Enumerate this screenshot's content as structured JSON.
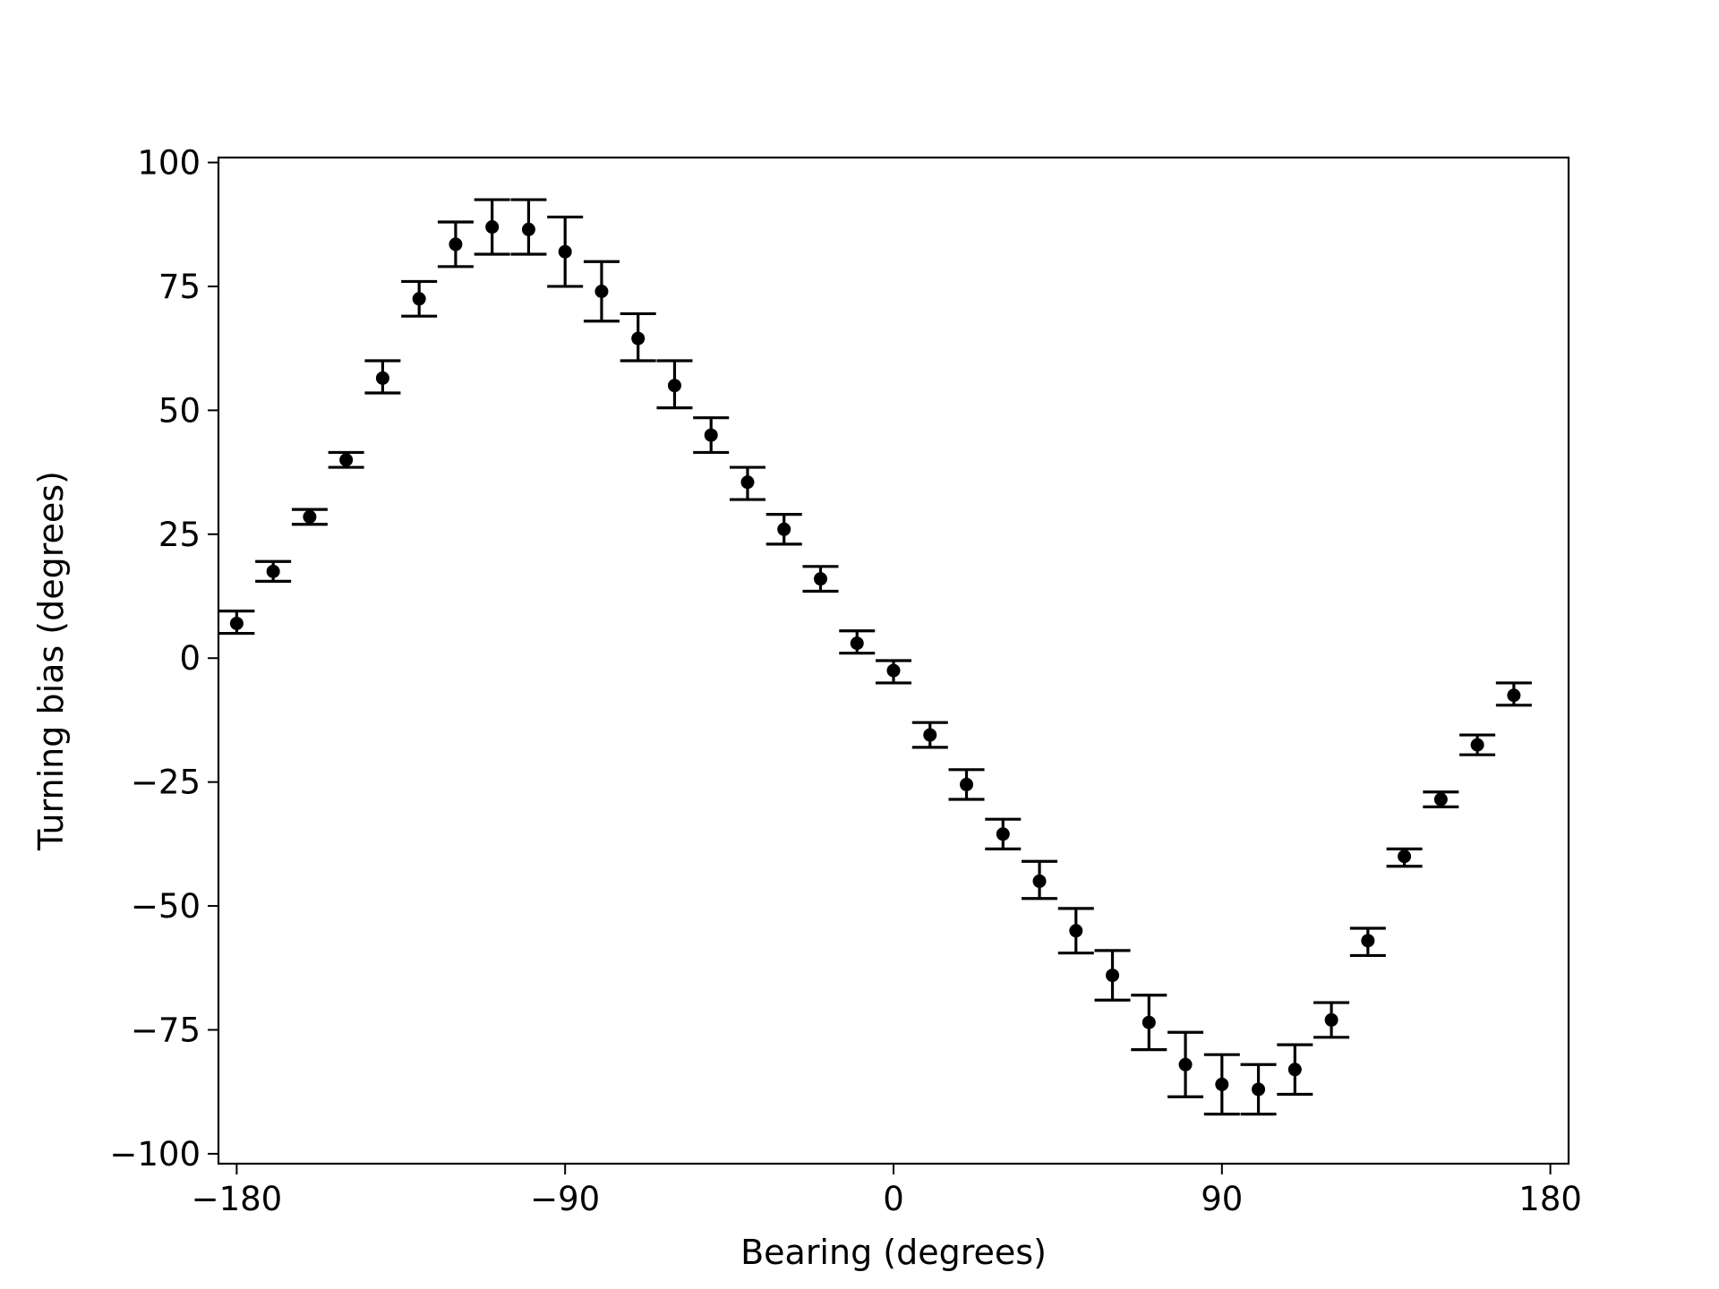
{
  "chart_data": {
    "type": "scatter",
    "title": "",
    "xlabel": "Bearing (degrees)",
    "ylabel": "Turning bias (degrees)",
    "xlim": [
      -185,
      185
    ],
    "ylim": [
      -102,
      101
    ],
    "xticks": [
      -180,
      -90,
      0,
      90,
      180
    ],
    "xtick_labels": [
      "−180",
      "−90",
      "0",
      "90",
      "180"
    ],
    "yticks": [
      100,
      75,
      50,
      25,
      0,
      -25,
      -50,
      -75,
      -100
    ],
    "ytick_labels": [
      "100",
      "75",
      "50",
      "25",
      "0",
      "−25",
      "−50",
      "−75",
      "−100"
    ],
    "grid": false,
    "marker_color": "#000000",
    "error_bars": true,
    "points": [
      {
        "x": -180,
        "y": 7,
        "err_low": 5,
        "err_high": 9.5
      },
      {
        "x": -170,
        "y": 17.5,
        "err_low": 15.5,
        "err_high": 19.5
      },
      {
        "x": -160,
        "y": 28.5,
        "err_low": 27,
        "err_high": 30
      },
      {
        "x": -150,
        "y": 40,
        "err_low": 38.5,
        "err_high": 41.5
      },
      {
        "x": -140,
        "y": 56.5,
        "err_low": 53.5,
        "err_high": 60
      },
      {
        "x": -130,
        "y": 72.5,
        "err_low": 69,
        "err_high": 76
      },
      {
        "x": -120,
        "y": 83.5,
        "err_low": 79,
        "err_high": 88
      },
      {
        "x": -110,
        "y": 87,
        "err_low": 81.5,
        "err_high": 92.5
      },
      {
        "x": -100,
        "y": 86.5,
        "err_low": 81.5,
        "err_high": 92.5
      },
      {
        "x": -90,
        "y": 82,
        "err_low": 75,
        "err_high": 89
      },
      {
        "x": -80,
        "y": 74,
        "err_low": 68,
        "err_high": 80
      },
      {
        "x": -70,
        "y": 64.5,
        "err_low": 60,
        "err_high": 69.5
      },
      {
        "x": -60,
        "y": 55,
        "err_low": 50.5,
        "err_high": 60
      },
      {
        "x": -50,
        "y": 45,
        "err_low": 41.5,
        "err_high": 48.5
      },
      {
        "x": -40,
        "y": 35.5,
        "err_low": 32,
        "err_high": 38.5
      },
      {
        "x": -30,
        "y": 26,
        "err_low": 23,
        "err_high": 29
      },
      {
        "x": -20,
        "y": 16,
        "err_low": 13.5,
        "err_high": 18.5
      },
      {
        "x": -10,
        "y": 3,
        "err_low": 1,
        "err_high": 5.5
      },
      {
        "x": 0,
        "y": -2.5,
        "err_low": -5,
        "err_high": -0.5
      },
      {
        "x": 10,
        "y": -15.5,
        "err_low": -18,
        "err_high": -13
      },
      {
        "x": 20,
        "y": -25.5,
        "err_low": -28.5,
        "err_high": -22.5
      },
      {
        "x": 30,
        "y": -35.5,
        "err_low": -38.5,
        "err_high": -32.5
      },
      {
        "x": 40,
        "y": -45,
        "err_low": -48.5,
        "err_high": -41
      },
      {
        "x": 50,
        "y": -55,
        "err_low": -59.5,
        "err_high": -50.5
      },
      {
        "x": 60,
        "y": -64,
        "err_low": -69,
        "err_high": -59
      },
      {
        "x": 70,
        "y": -73.5,
        "err_low": -79,
        "err_high": -68
      },
      {
        "x": 80,
        "y": -82,
        "err_low": -88.5,
        "err_high": -75.5
      },
      {
        "x": 90,
        "y": -86,
        "err_low": -92,
        "err_high": -80
      },
      {
        "x": 100,
        "y": -87,
        "err_low": -92,
        "err_high": -82
      },
      {
        "x": 110,
        "y": -83,
        "err_low": -88,
        "err_high": -78
      },
      {
        "x": 120,
        "y": -73,
        "err_low": -76.5,
        "err_high": -69.5
      },
      {
        "x": 130,
        "y": -57,
        "err_low": -60,
        "err_high": -54.5
      },
      {
        "x": 140,
        "y": -40,
        "err_low": -42,
        "err_high": -38.5
      },
      {
        "x": 150,
        "y": -28.5,
        "err_low": -30,
        "err_high": -27
      },
      {
        "x": 160,
        "y": -17.5,
        "err_low": -19.5,
        "err_high": -15.5
      },
      {
        "x": 170,
        "y": -7.5,
        "err_low": -9.5,
        "err_high": -5
      }
    ]
  }
}
